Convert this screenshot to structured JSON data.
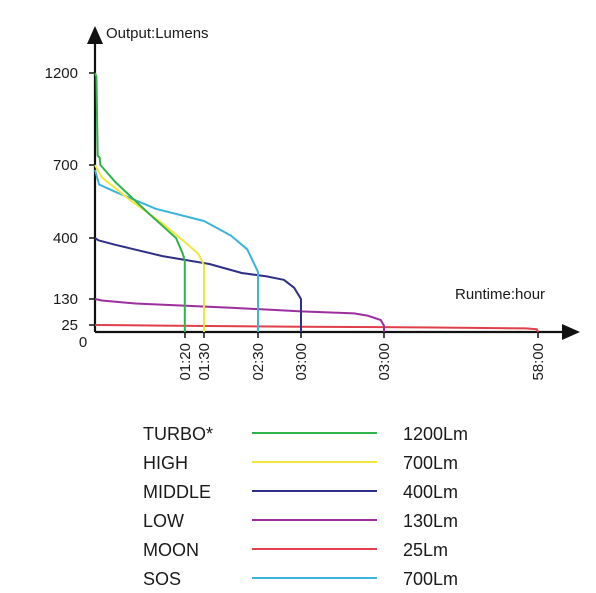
{
  "chart_data": {
    "type": "line",
    "ylabel": "Output:Lumens",
    "xlabel": "Runtime:hour",
    "origin_label": "0",
    "y_ticks": [
      {
        "value": 25,
        "label": "25"
      },
      {
        "value": 130,
        "label": "130"
      },
      {
        "value": 400,
        "label": "400"
      },
      {
        "value": 700,
        "label": "700"
      },
      {
        "value": 1200,
        "label": "1200"
      }
    ],
    "x_ticks": [
      "01:20",
      "01:30",
      "02:30",
      "03:00",
      "03:00",
      "58:00"
    ],
    "series": [
      {
        "name": "TURBO*",
        "color": "#2fb34a",
        "rated": "1200Lm",
        "points": [
          [
            0,
            1200
          ],
          [
            0.02,
            1180
          ],
          [
            0.04,
            750
          ],
          [
            0.07,
            740
          ],
          [
            0.08,
            700
          ],
          [
            0.3,
            630
          ],
          [
            0.8,
            500
          ],
          [
            1.2,
            400
          ],
          [
            1.3,
            330
          ],
          [
            1.33,
            300
          ],
          [
            1.33,
            0
          ]
        ]
      },
      {
        "name": "HIGH",
        "color": "#f0e63c",
        "rated": "700Lm",
        "points": [
          [
            0,
            700
          ],
          [
            0.1,
            650
          ],
          [
            0.5,
            560
          ],
          [
            1.0,
            460
          ],
          [
            1.3,
            390
          ],
          [
            1.45,
            330
          ],
          [
            1.5,
            280
          ],
          [
            1.5,
            0
          ]
        ]
      },
      {
        "name": "MIDDLE",
        "color": "#2e2f86",
        "rated": "400Lm",
        "points": [
          [
            0,
            400
          ],
          [
            0.05,
            390
          ],
          [
            0.3,
            370
          ],
          [
            1.0,
            320
          ],
          [
            1.6,
            285
          ],
          [
            2.2,
            245
          ],
          [
            2.6,
            230
          ],
          [
            2.8,
            215
          ],
          [
            2.92,
            180
          ],
          [
            3.0,
            130
          ],
          [
            3.0,
            0
          ]
        ]
      },
      {
        "name": "LOW",
        "color": "#9b2f9d",
        "rated": "130Lm",
        "points": [
          [
            0,
            130
          ],
          [
            0.1,
            124
          ],
          [
            0.6,
            112
          ],
          [
            2.0,
            95
          ],
          [
            3.0,
            80
          ],
          [
            3.8,
            72
          ],
          [
            4.0,
            63
          ],
          [
            4.2,
            45
          ],
          [
            4.25,
            22
          ],
          [
            4.25,
            0
          ]
        ]
      },
      {
        "name": "MOON",
        "color": "#e0404a",
        "rated": "25Lm",
        "points": [
          [
            0,
            25
          ],
          [
            1.0,
            23
          ],
          [
            3.0,
            19
          ],
          [
            5.5,
            16
          ],
          [
            7.8,
            13
          ],
          [
            8.07,
            10
          ],
          [
            8.1,
            0
          ]
        ]
      },
      {
        "name": "SOS",
        "color": "#3ab4dc",
        "rated": "700Lm",
        "points": [
          [
            0,
            680
          ],
          [
            0.06,
            620
          ],
          [
            0.3,
            590
          ],
          [
            0.9,
            520
          ],
          [
            1.5,
            470
          ],
          [
            2.0,
            410
          ],
          [
            2.3,
            350
          ],
          [
            2.5,
            250
          ],
          [
            2.5,
            0
          ]
        ]
      }
    ]
  }
}
